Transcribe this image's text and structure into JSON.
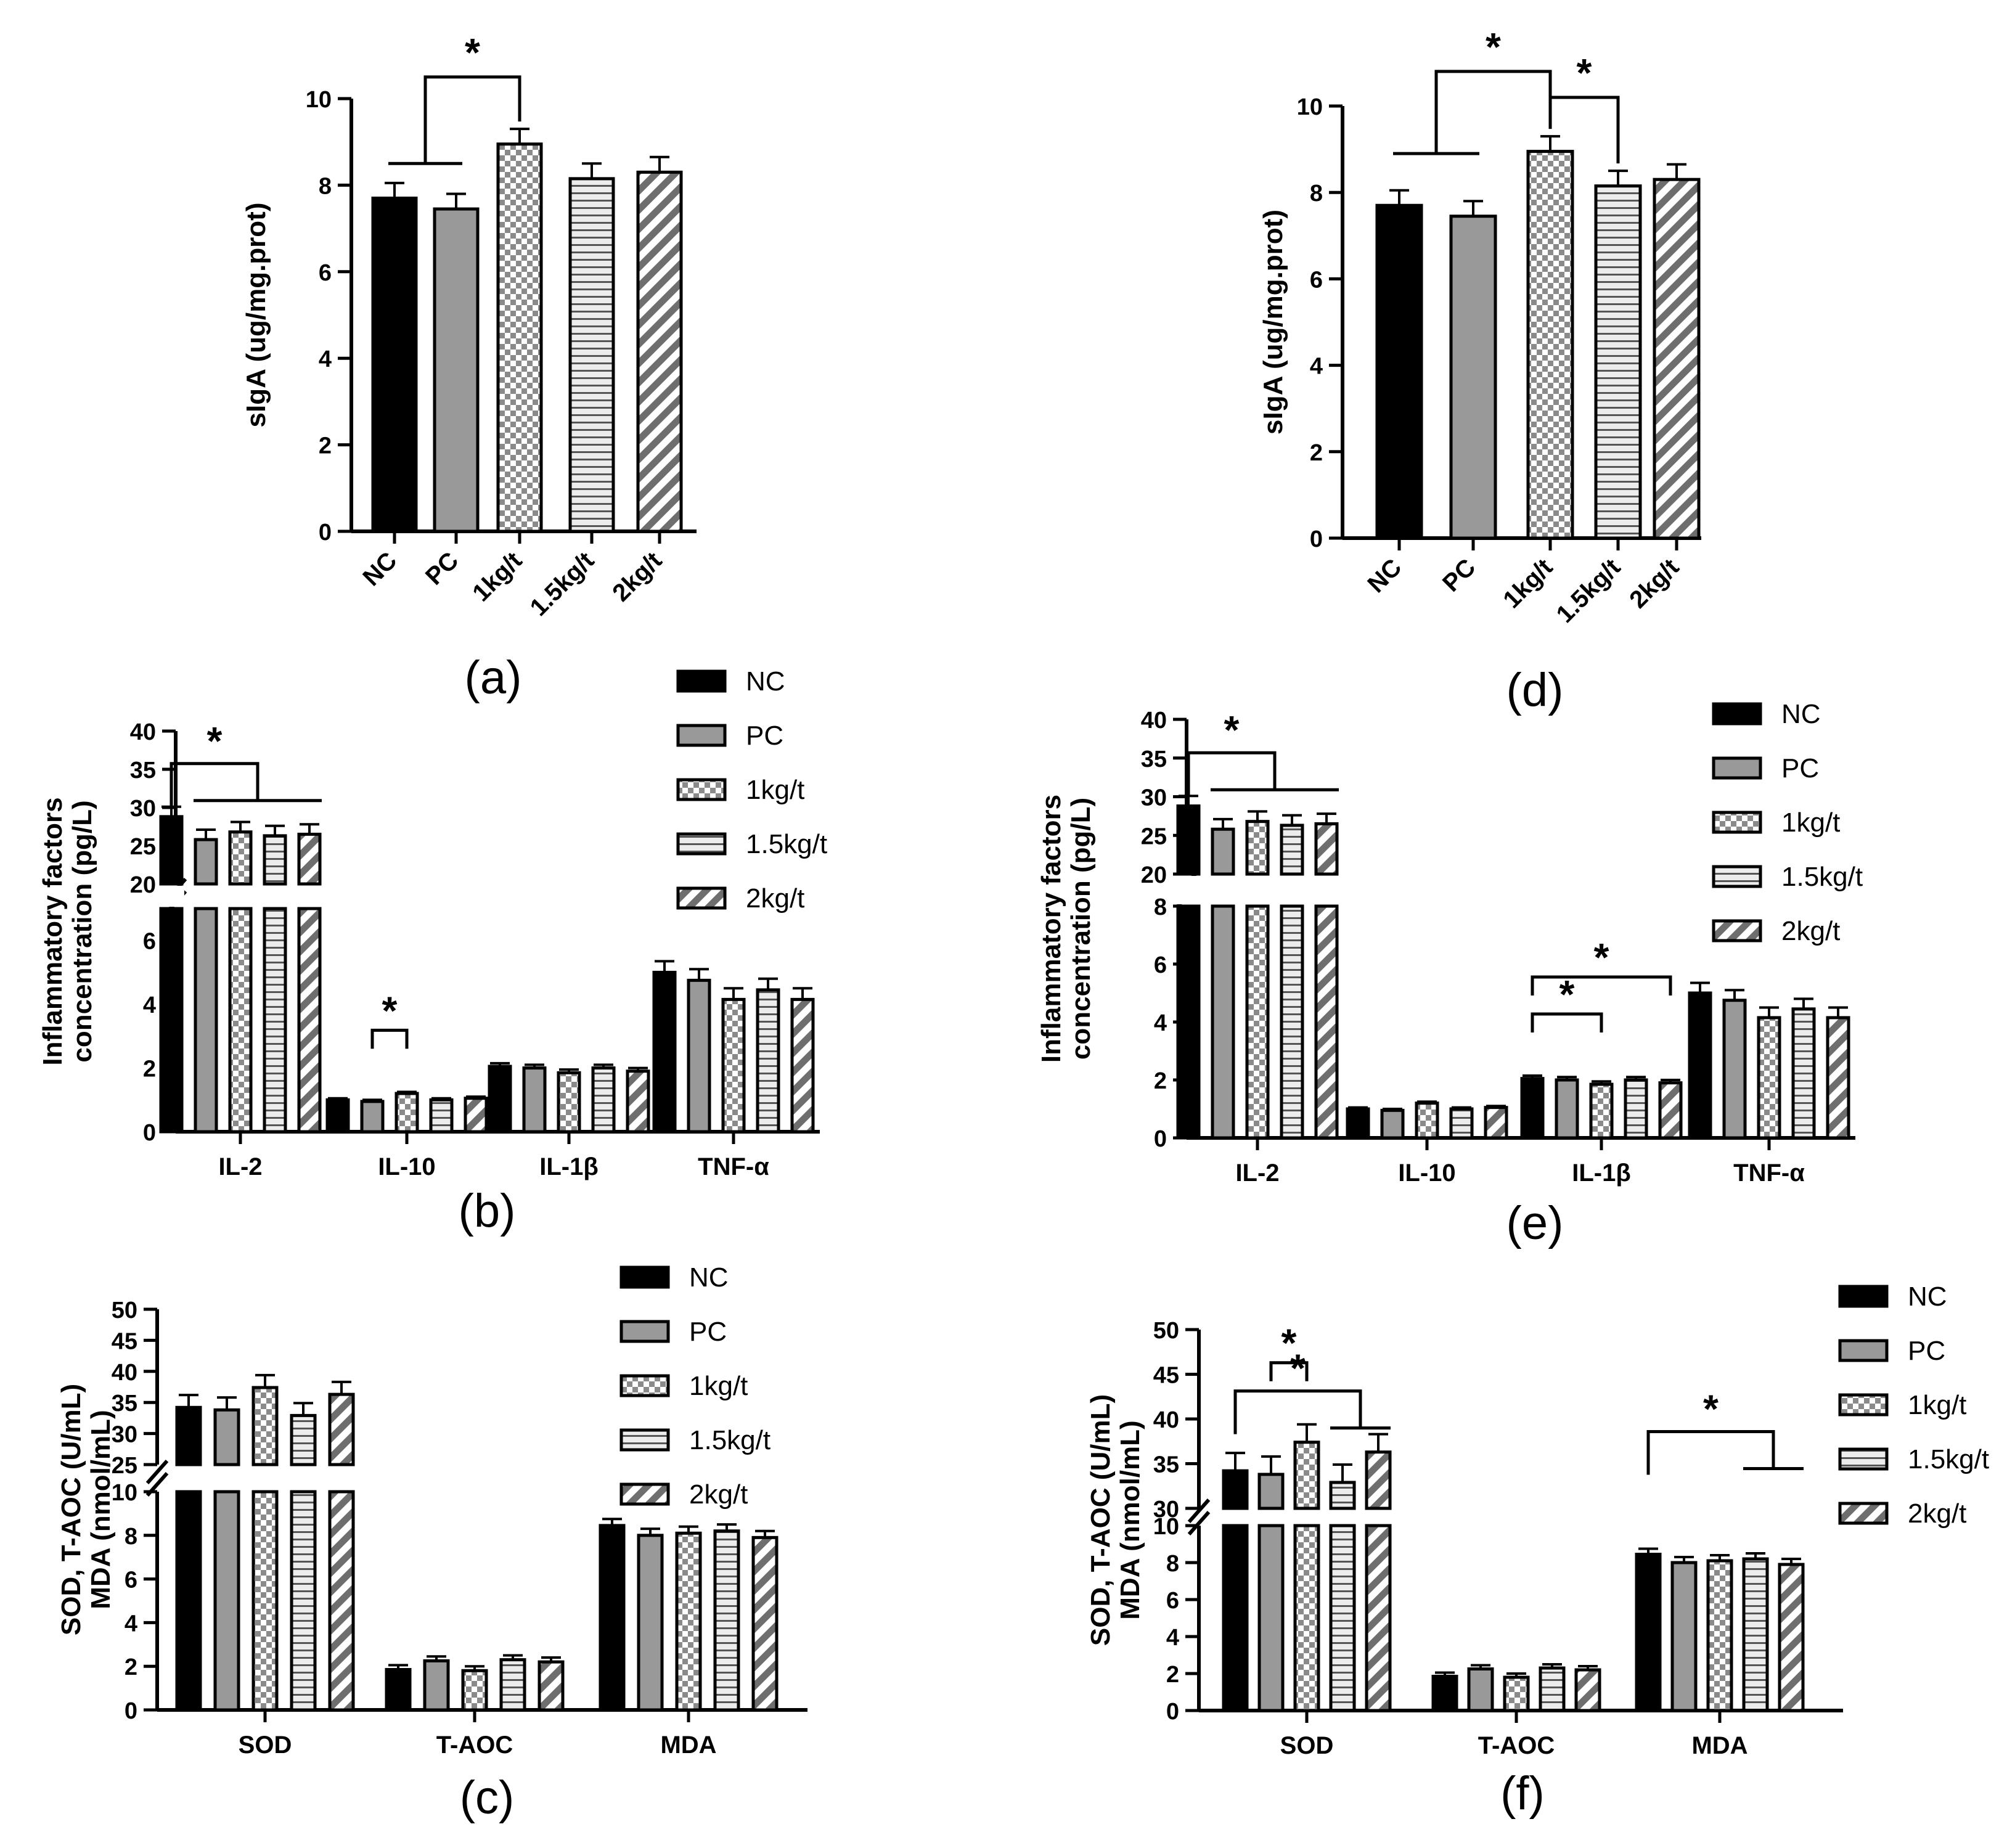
{
  "figure": {
    "groups": [
      "NC",
      "PC",
      "1kg/t",
      "1.5kg/t",
      "2kg/t"
    ],
    "patterns": [
      "solid-black",
      "solid-gray",
      "checker",
      "hstripe",
      "diag"
    ],
    "colors": {
      "black": "#000000",
      "gray": "#999999",
      "light": "#e6e6e6",
      "diag": "#777777",
      "white": "#ffffff"
    }
  },
  "chart_data": [
    {
      "id": "a",
      "panel_label": "(a)",
      "type": "bar",
      "ylabel": "sIgA (ug/mg.prot)",
      "ylim": [
        0,
        10
      ],
      "yticks": [
        0,
        2,
        4,
        6,
        8,
        10
      ],
      "categories": [
        "NC",
        "PC",
        "1kg/t",
        "1.5kg/t",
        "2kg/t"
      ],
      "values": [
        7.7,
        7.45,
        8.95,
        8.15,
        8.3
      ],
      "errors": [
        0.35,
        0.35,
        0.35,
        0.35,
        0.35
      ],
      "significance": [
        {
          "from": [
            "NC",
            "PC"
          ],
          "to": "1kg/t",
          "label": "*"
        }
      ]
    },
    {
      "id": "d",
      "panel_label": "(d)",
      "type": "bar",
      "ylabel": "sIgA (ug/mg.prot)",
      "ylim": [
        0,
        10
      ],
      "yticks": [
        0,
        2,
        4,
        6,
        8,
        10
      ],
      "categories": [
        "NC",
        "PC",
        "1kg/t",
        "1.5kg/t",
        "2kg/t"
      ],
      "values": [
        7.7,
        7.45,
        8.95,
        8.15,
        8.3
      ],
      "errors": [
        0.35,
        0.35,
        0.35,
        0.35,
        0.35
      ],
      "significance": [
        {
          "from": [
            "NC",
            "PC"
          ],
          "to": "1kg/t",
          "label": "*"
        },
        {
          "from": [
            "1kg/t"
          ],
          "to": "1.5kg/t",
          "label": "*"
        }
      ]
    },
    {
      "id": "b",
      "panel_label": "(b)",
      "type": "bar",
      "ylabel": [
        "Inflammatory factors",
        "concentration (pg/L)"
      ],
      "broken_axis": {
        "lower": [
          0,
          7
        ],
        "upper": [
          20,
          40
        ]
      },
      "lower_ticks": [
        0,
        2,
        4,
        6
      ],
      "upper_ticks": [
        20,
        25,
        30,
        35,
        40
      ],
      "categories": [
        "IL-2",
        "IL-10",
        "IL-1β",
        "TNF-α"
      ],
      "legend": [
        "NC",
        "PC",
        "1kg/t",
        "1.5kg/t",
        "2kg/t"
      ],
      "series": [
        {
          "name": "NC",
          "values": [
            28.8,
            1.0,
            2.05,
            5.0
          ],
          "errors": [
            1.3,
            0.05,
            0.1,
            0.35
          ]
        },
        {
          "name": "PC",
          "values": [
            25.8,
            0.95,
            2.0,
            4.75
          ],
          "errors": [
            1.3,
            0.05,
            0.1,
            0.35
          ]
        },
        {
          "name": "1kg/t",
          "values": [
            26.8,
            1.2,
            1.85,
            4.15
          ],
          "errors": [
            1.3,
            0.05,
            0.1,
            0.35
          ]
        },
        {
          "name": "1.5kg/t",
          "values": [
            26.3,
            1.0,
            2.0,
            4.45
          ],
          "errors": [
            1.3,
            0.05,
            0.1,
            0.35
          ]
        },
        {
          "name": "2kg/t",
          "values": [
            26.5,
            1.05,
            1.9,
            4.15
          ],
          "errors": [
            1.3,
            0.05,
            0.1,
            0.35
          ]
        }
      ],
      "significance": [
        {
          "category": "IL-2",
          "from": "NC",
          "to": [
            "PC",
            "1kg/t",
            "1.5kg/t",
            "2kg/t"
          ],
          "label": "*"
        },
        {
          "category": "IL-10",
          "from": "PC",
          "to": [
            "1kg/t"
          ],
          "label": "*"
        }
      ]
    },
    {
      "id": "e",
      "panel_label": "(e)",
      "type": "bar",
      "ylabel": [
        "Inflammatory factors",
        "concentration (pg/L)"
      ],
      "broken_axis": {
        "lower": [
          0,
          8
        ],
        "upper": [
          20,
          40
        ]
      },
      "lower_ticks": [
        0,
        2,
        4,
        6,
        8
      ],
      "upper_ticks": [
        20,
        25,
        30,
        35,
        40
      ],
      "categories": [
        "IL-2",
        "IL-10",
        "IL-1β",
        "TNF-α"
      ],
      "legend": [
        "NC",
        "PC",
        "1kg/t",
        "1.5kg/t",
        "2kg/t"
      ],
      "series": [
        {
          "name": "NC",
          "values": [
            28.8,
            1.0,
            2.05,
            5.0
          ],
          "errors": [
            1.3,
            0.05,
            0.1,
            0.35
          ]
        },
        {
          "name": "PC",
          "values": [
            25.8,
            0.95,
            2.0,
            4.75
          ],
          "errors": [
            1.3,
            0.05,
            0.1,
            0.35
          ]
        },
        {
          "name": "1kg/t",
          "values": [
            26.8,
            1.2,
            1.85,
            4.15
          ],
          "errors": [
            1.3,
            0.05,
            0.1,
            0.35
          ]
        },
        {
          "name": "1.5kg/t",
          "values": [
            26.3,
            1.0,
            2.0,
            4.45
          ],
          "errors": [
            1.3,
            0.05,
            0.1,
            0.35
          ]
        },
        {
          "name": "2kg/t",
          "values": [
            26.5,
            1.05,
            1.9,
            4.15
          ],
          "errors": [
            1.3,
            0.05,
            0.1,
            0.35
          ]
        }
      ],
      "significance": [
        {
          "category": "IL-2",
          "from": "NC",
          "to": [
            "PC",
            "1kg/t",
            "1.5kg/t",
            "2kg/t"
          ],
          "label": "*"
        },
        {
          "category": "IL-1β",
          "from": "NC",
          "to": [
            "1kg/t"
          ],
          "label": "*"
        },
        {
          "category": "IL-1β",
          "from": "NC",
          "to": [
            "2kg/t"
          ],
          "label": "*"
        }
      ]
    },
    {
      "id": "c",
      "panel_label": "(c)",
      "type": "bar",
      "ylabel": [
        "SOD, T-AOC (U/mL)",
        "MDA (nmol/mL)"
      ],
      "broken_axis": {
        "lower": [
          0,
          10
        ],
        "upper": [
          25,
          50
        ]
      },
      "lower_ticks": [
        0,
        2,
        4,
        6,
        8,
        10
      ],
      "upper_ticks": [
        25,
        30,
        35,
        40,
        45,
        50
      ],
      "categories": [
        "SOD",
        "T-AOC",
        "MDA"
      ],
      "legend": [
        "NC",
        "PC",
        "1kg/t",
        "1.5kg/t",
        "2kg/t"
      ],
      "series": [
        {
          "name": "NC",
          "values": [
            34.2,
            1.85,
            8.45
          ],
          "errors": [
            2.0,
            0.2,
            0.3
          ]
        },
        {
          "name": "PC",
          "values": [
            33.8,
            2.25,
            8.0
          ],
          "errors": [
            2.0,
            0.2,
            0.3
          ]
        },
        {
          "name": "1kg/t",
          "values": [
            37.4,
            1.8,
            8.1
          ],
          "errors": [
            2.0,
            0.2,
            0.3
          ]
        },
        {
          "name": "1.5kg/t",
          "values": [
            32.9,
            2.3,
            8.2
          ],
          "errors": [
            2.0,
            0.2,
            0.3
          ]
        },
        {
          "name": "2kg/t",
          "values": [
            36.3,
            2.2,
            7.9
          ],
          "errors": [
            2.0,
            0.2,
            0.3
          ]
        }
      ],
      "significance": []
    },
    {
      "id": "f",
      "panel_label": "(f)",
      "type": "bar",
      "ylabel": [
        "SOD, T-AOC (U/mL)",
        "MDA (nmol/mL)"
      ],
      "broken_axis": {
        "lower": [
          0,
          10
        ],
        "upper": [
          30,
          50
        ]
      },
      "lower_ticks": [
        0,
        2,
        4,
        6,
        8,
        10
      ],
      "upper_ticks": [
        30,
        35,
        40,
        45,
        50
      ],
      "categories": [
        "SOD",
        "T-AOC",
        "MDA"
      ],
      "legend": [
        "NC",
        "PC",
        "1kg/t",
        "1.5kg/t",
        "2kg/t"
      ],
      "series": [
        {
          "name": "NC",
          "values": [
            34.2,
            1.85,
            8.45
          ],
          "errors": [
            2.0,
            0.2,
            0.3
          ]
        },
        {
          "name": "PC",
          "values": [
            33.8,
            2.25,
            8.0
          ],
          "errors": [
            2.0,
            0.2,
            0.3
          ]
        },
        {
          "name": "1kg/t",
          "values": [
            37.4,
            1.8,
            8.1
          ],
          "errors": [
            2.0,
            0.2,
            0.3
          ]
        },
        {
          "name": "1.5kg/t",
          "values": [
            32.9,
            2.3,
            8.2
          ],
          "errors": [
            2.0,
            0.2,
            0.3
          ]
        },
        {
          "name": "2kg/t",
          "values": [
            36.3,
            2.2,
            7.9
          ],
          "errors": [
            2.0,
            0.2,
            0.3
          ]
        }
      ],
      "significance": [
        {
          "category": "SOD",
          "from": "NC",
          "to": [
            "1.5kg/t",
            "2kg/t"
          ],
          "label": "*"
        },
        {
          "category": "SOD",
          "from": "PC",
          "to": [
            "1kg/t"
          ],
          "label": "*"
        },
        {
          "category": "MDA",
          "from": "NC",
          "to": [
            "1.5kg/t",
            "2kg/t"
          ],
          "label": "*"
        }
      ]
    }
  ]
}
